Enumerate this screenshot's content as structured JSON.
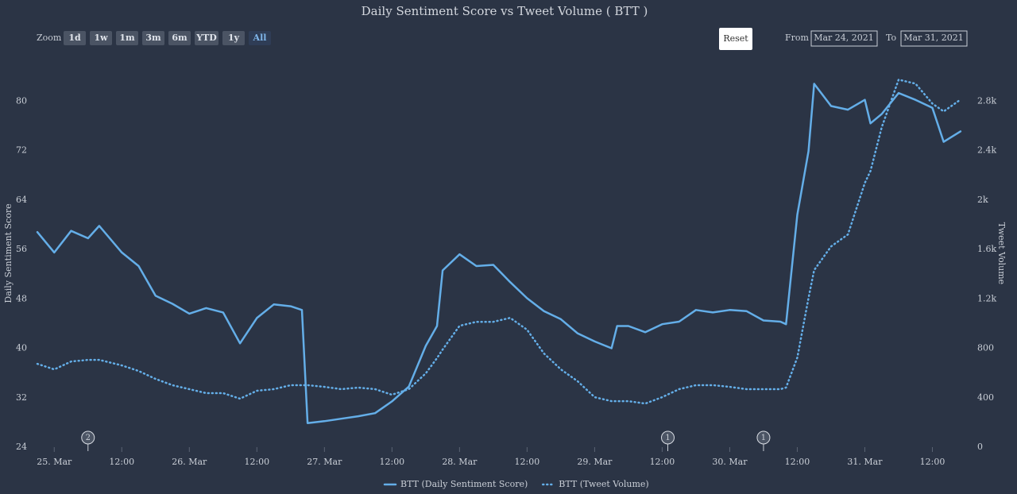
{
  "chart_data": {
    "type": "line",
    "title": "Daily Sentiment Score vs Tweet Volume ( BTT )",
    "ylabel": "Daily Sentiment Score",
    "y2label": "Tweet Volume",
    "range_selector": {
      "label": "Zoom",
      "buttons": [
        "1d",
        "1w",
        "1m",
        "3m",
        "6m",
        "YTD",
        "1y",
        "All"
      ],
      "selected": 7
    },
    "reset_label": "Reset",
    "date_range": {
      "from_label": "From",
      "from": "Mar 24, 2021",
      "to_label": "To",
      "to": "Mar 31, 2021"
    },
    "xlim": [
      "2021-03-24T21:00",
      "2021-03-31T18:00"
    ],
    "xticks": [
      {
        "value": "2021-03-25T00:00",
        "label": "25. Mar"
      },
      {
        "value": "2021-03-25T12:00",
        "label": "12:00"
      },
      {
        "value": "2021-03-26T00:00",
        "label": "26. Mar"
      },
      {
        "value": "2021-03-26T12:00",
        "label": "12:00"
      },
      {
        "value": "2021-03-27T00:00",
        "label": "27. Mar"
      },
      {
        "value": "2021-03-27T12:00",
        "label": "12:00"
      },
      {
        "value": "2021-03-28T00:00",
        "label": "28. Mar"
      },
      {
        "value": "2021-03-28T12:00",
        "label": "12:00"
      },
      {
        "value": "2021-03-29T00:00",
        "label": "29. Mar"
      },
      {
        "value": "2021-03-29T12:00",
        "label": "12:00"
      },
      {
        "value": "2021-03-30T00:00",
        "label": "30. Mar"
      },
      {
        "value": "2021-03-30T12:00",
        "label": "12:00"
      },
      {
        "value": "2021-03-31T00:00",
        "label": "31. Mar"
      },
      {
        "value": "2021-03-31T12:00",
        "label": "12:00"
      }
    ],
    "ylim": [
      24,
      88
    ],
    "yticks": [
      24,
      32,
      40,
      48,
      56,
      64,
      72,
      80
    ],
    "y2lim": [
      0,
      3200
    ],
    "y2ticks": [
      0,
      400,
      800,
      {
        "value": 1200,
        "label": "1.2k"
      },
      {
        "value": 1600,
        "label": "1.6k"
      },
      {
        "value": 2000,
        "label": "2k"
      },
      {
        "value": 2400,
        "label": "2.4k"
      },
      {
        "value": 2800,
        "label": "2.8k"
      }
    ],
    "x": [
      "2021-03-24T21:00",
      "2021-03-25T00:00",
      "2021-03-25T03:00",
      "2021-03-25T06:00",
      "2021-03-25T08:00",
      "2021-03-25T12:00",
      "2021-03-25T15:00",
      "2021-03-25T18:00",
      "2021-03-25T21:00",
      "2021-03-26T00:00",
      "2021-03-26T03:00",
      "2021-03-26T06:00",
      "2021-03-26T09:00",
      "2021-03-26T12:00",
      "2021-03-26T15:00",
      "2021-03-26T18:00",
      "2021-03-26T20:00",
      "2021-03-26T21:00",
      "2021-03-27T00:00",
      "2021-03-27T03:00",
      "2021-03-27T06:00",
      "2021-03-27T09:00",
      "2021-03-27T12:00",
      "2021-03-27T15:00",
      "2021-03-27T18:00",
      "2021-03-27T20:00",
      "2021-03-27T21:00",
      "2021-03-28T00:00",
      "2021-03-28T03:00",
      "2021-03-28T06:00",
      "2021-03-28T09:00",
      "2021-03-28T12:00",
      "2021-03-28T15:00",
      "2021-03-28T18:00",
      "2021-03-28T21:00",
      "2021-03-29T00:00",
      "2021-03-29T03:00",
      "2021-03-29T04:00",
      "2021-03-29T06:00",
      "2021-03-29T09:00",
      "2021-03-29T12:00",
      "2021-03-29T15:00",
      "2021-03-29T18:00",
      "2021-03-29T21:00",
      "2021-03-30T00:00",
      "2021-03-30T03:00",
      "2021-03-30T06:00",
      "2021-03-30T09:00",
      "2021-03-30T10:00",
      "2021-03-30T12:00",
      "2021-03-30T14:00",
      "2021-03-30T15:00",
      "2021-03-30T18:00",
      "2021-03-30T21:00",
      "2021-03-31T00:00",
      "2021-03-31T01:00",
      "2021-03-31T03:00",
      "2021-03-31T06:00",
      "2021-03-31T09:00",
      "2021-03-31T12:00",
      "2021-03-31T14:00",
      "2021-03-31T17:00"
    ],
    "series": [
      {
        "name": "BTT (Daily Sentiment Score)",
        "color": "#64aee8",
        "dash": false,
        "values": [
          58.8,
          55.5,
          59,
          57.8,
          59.8,
          55.5,
          53.3,
          48.5,
          47.2,
          45.6,
          46.5,
          45.8,
          40.8,
          44.9,
          47.1,
          46.8,
          46.2,
          27.9,
          28.2,
          28.6,
          29,
          29.5,
          31.4,
          33.8,
          40.4,
          43.6,
          52.6,
          55.2,
          53.3,
          53.5,
          50.7,
          48.1,
          46,
          44.7,
          42.4,
          41.1,
          40,
          43.6,
          43.6,
          42.6,
          43.9,
          44.3,
          46.2,
          45.8,
          46.2,
          46,
          44.5,
          44.3,
          43.9,
          61.6,
          71.9,
          82.8,
          79.2,
          78.6,
          80.2,
          76.4,
          77.9,
          81.3,
          80.2,
          78.9,
          73.4,
          75.1
        ]
      },
      {
        "name": "BTT (Tweet Volume)",
        "color": "#64aee8",
        "dash": true,
        "axis": "y2",
        "values": [
          674,
          629,
          693,
          706,
          706,
          661,
          616,
          552,
          501,
          469,
          437,
          437,
          392,
          456,
          469,
          501,
          501,
          501,
          488,
          469,
          482,
          469,
          424,
          469,
          597,
          720,
          790,
          982,
          1014,
          1014,
          1046,
          950,
          758,
          629,
          533,
          404,
          372,
          372,
          372,
          353,
          404,
          469,
          501,
          501,
          488,
          469,
          469,
          469,
          482,
          725,
          1207,
          1432,
          1624,
          1721,
          2138,
          2234,
          2587,
          2973,
          2941,
          2780,
          2716,
          2812
        ]
      }
    ],
    "flags": [
      {
        "x": "2021-03-25T06:00",
        "title": "2"
      },
      {
        "x": "2021-03-29T13:00",
        "title": "1"
      },
      {
        "x": "2021-03-30T06:00",
        "title": "1"
      }
    ],
    "legend": "bottom"
  }
}
